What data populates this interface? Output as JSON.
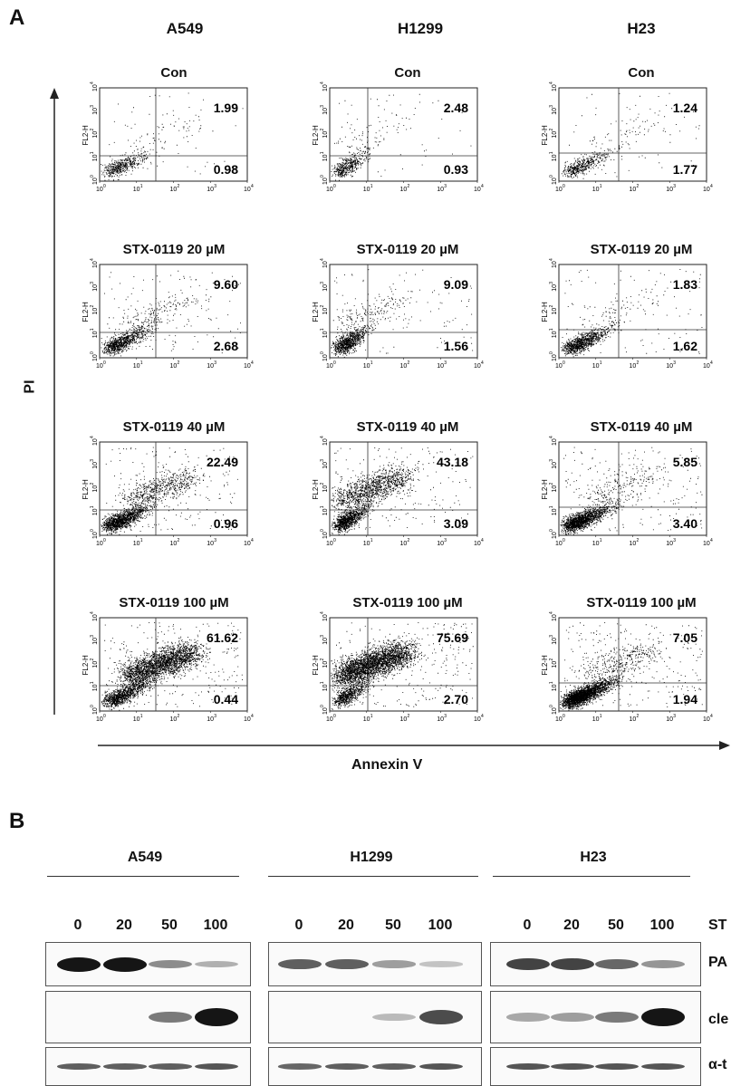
{
  "panel_a": {
    "letter": "A",
    "column_headers": [
      "A549",
      "H1299",
      "H23"
    ],
    "row_titles": [
      "Con",
      "STX-0119 20 µM",
      "STX-0119 40 µM",
      "STX-0119 100 µM"
    ],
    "y_axis_title": "PI",
    "x_axis_title": "Annexin V",
    "plot_ylabel": "FL2-H",
    "tick_labels": [
      "10",
      "10",
      "10",
      "10",
      "10"
    ],
    "tick_exponents": [
      "0",
      "1",
      "2",
      "3",
      "4"
    ],
    "quadrant_values": [
      [
        [
          "1.99",
          "0.98"
        ],
        [
          "2.48",
          "0.93"
        ],
        [
          "1.24",
          "1.77"
        ]
      ],
      [
        [
          "9.60",
          "2.68"
        ],
        [
          "9.09",
          "1.56"
        ],
        [
          "1.83",
          "1.62"
        ]
      ],
      [
        [
          "22.49",
          "0.96"
        ],
        [
          "43.18",
          "3.09"
        ],
        [
          "5.85",
          "3.40"
        ]
      ],
      [
        [
          "61.62",
          "0.44"
        ],
        [
          "75.69",
          "2.70"
        ],
        [
          "7.05",
          "1.94"
        ]
      ]
    ]
  },
  "panel_b": {
    "letter": "B",
    "groups": [
      "A549",
      "H1299",
      "H23"
    ],
    "doses": [
      "0",
      "20",
      "50",
      "100"
    ],
    "dose_label": "ST",
    "row_labels": [
      "PA",
      "cle",
      "α-t"
    ],
    "band_levels": {
      "PARP": [
        [
          1.0,
          1.0,
          0.35,
          0.15
        ],
        [
          0.6,
          0.6,
          0.25,
          0.05
        ],
        [
          0.75,
          0.75,
          0.55,
          0.3
        ]
      ],
      "cleaved": [
        [
          0.0,
          0.0,
          0.45,
          1.0
        ],
        [
          0.0,
          0.0,
          0.1,
          0.7
        ],
        [
          0.2,
          0.25,
          0.45,
          1.0
        ]
      ],
      "tubulin": [
        [
          0.6,
          0.6,
          0.6,
          0.65
        ],
        [
          0.55,
          0.6,
          0.6,
          0.65
        ],
        [
          0.65,
          0.65,
          0.65,
          0.65
        ]
      ]
    }
  },
  "colors": {
    "dots": "#000000",
    "axis": "#222222",
    "band": "#151515"
  }
}
